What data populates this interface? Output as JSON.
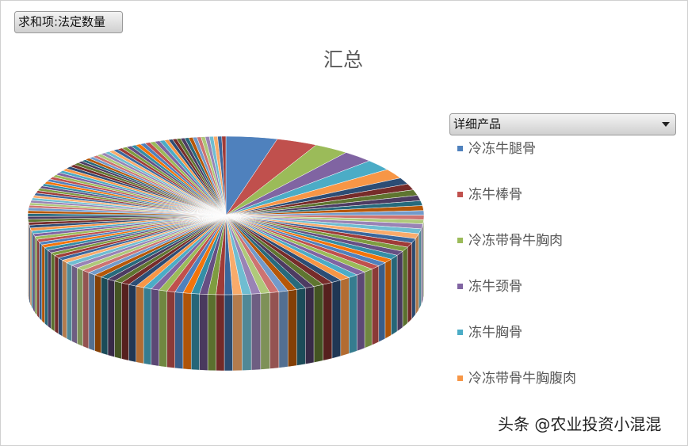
{
  "chart_data": {
    "type": "pie3d",
    "title": "汇总",
    "field_button": "求和项:法定数量",
    "legend_title": "详细产品",
    "watermark": "头条 @农业投资小混混",
    "categories": [
      "冷冻牛腿骨",
      "冻牛棒骨",
      "冷冻带骨牛胸肉",
      "冻牛颈骨",
      "冻牛胸骨",
      "冷冻带骨牛胸腹肉",
      null,
      null,
      null,
      null,
      null,
      null,
      null,
      null,
      null,
      null,
      null,
      null,
      null,
      null,
      null,
      null,
      null,
      null,
      null,
      null,
      null,
      null,
      null,
      null,
      null,
      null,
      null,
      null,
      null,
      null,
      null,
      null,
      null,
      null,
      null,
      null,
      null,
      null,
      null,
      null,
      null,
      null,
      null,
      null,
      null,
      null,
      null,
      null,
      null,
      null,
      null,
      null,
      null,
      null,
      null,
      null,
      null,
      null,
      null,
      null,
      null,
      null,
      null,
      null,
      null,
      null,
      null,
      null,
      null,
      null,
      null,
      null,
      null,
      null,
      null,
      null,
      null,
      null,
      null,
      null,
      null,
      null,
      null,
      null,
      null,
      null,
      null,
      null,
      null,
      null,
      null,
      null,
      null,
      null,
      null,
      null,
      null,
      null,
      null,
      null,
      null,
      null,
      null,
      null,
      null,
      null,
      null,
      null,
      null,
      null,
      null,
      null,
      null,
      null,
      null,
      null,
      null,
      null,
      null,
      null,
      null,
      null,
      null,
      null,
      null,
      null,
      null,
      null,
      null,
      null,
      null,
      null,
      null,
      null
    ],
    "values": [
      5.0,
      4.0,
      3.4,
      3.0,
      2.7,
      2.4,
      1.6,
      1.5,
      1.4,
      1.3,
      1.2,
      1.2,
      1.1,
      1.1,
      1.0,
      1.2,
      1.2,
      1.2,
      1.1,
      1.1,
      1.1,
      1.1,
      1.1,
      1.0,
      1.0,
      1.0,
      1.0,
      1.0,
      1.0,
      1.0,
      1.0,
      1.0,
      1.0,
      0.9,
      0.9,
      0.9,
      0.9,
      0.9,
      0.9,
      0.9,
      0.9,
      0.9,
      0.8,
      0.8,
      0.8,
      0.8,
      0.8,
      0.8,
      0.8,
      0.8,
      0.8,
      0.8,
      0.8,
      0.8,
      0.8,
      0.8,
      0.8,
      0.8,
      0.8,
      0.8,
      0.8,
      0.8,
      0.8,
      0.8,
      0.8,
      0.7,
      0.7,
      0.7,
      0.7,
      0.7,
      0.7,
      0.7,
      0.7,
      0.7,
      0.7,
      0.7,
      0.7,
      0.7,
      0.7,
      0.7,
      0.7,
      0.7,
      0.7,
      0.7,
      0.7,
      0.6,
      0.6,
      0.6,
      0.6,
      0.6,
      0.6,
      0.6,
      0.6,
      0.6,
      0.6,
      0.6,
      0.6,
      0.6,
      0.6,
      0.6,
      0.6,
      0.6,
      0.6,
      0.6,
      0.6,
      0.5,
      0.5,
      0.5,
      0.5,
      0.5,
      0.5,
      0.5,
      0.5,
      0.5,
      0.5,
      0.5,
      0.5,
      0.5,
      0.5,
      0.5,
      0.5,
      0.5,
      0.5,
      0.5,
      0.5,
      0.4,
      0.4,
      0.4,
      0.4,
      0.4,
      0.4,
      0.4,
      0.4,
      0.4,
      0.4,
      0.4,
      0.4,
      0.4,
      0.4,
      0.4
    ],
    "colors": [
      "#4f81bd",
      "#c0504d",
      "#9bbb59",
      "#8064a2",
      "#4bacc6",
      "#f79646",
      "#2c4d75",
      "#772c2a",
      "#5f7530",
      "#4d3b62",
      "#276a7c",
      "#b65708",
      "#729aca",
      "#cd7371",
      "#afc97a",
      "#9983b5",
      "#6fbdd1",
      "#f9ab6b",
      "#3a679c",
      "#9f3b38",
      "#7e9c40",
      "#664f83",
      "#358ea6",
      "#f3740b"
    ]
  }
}
